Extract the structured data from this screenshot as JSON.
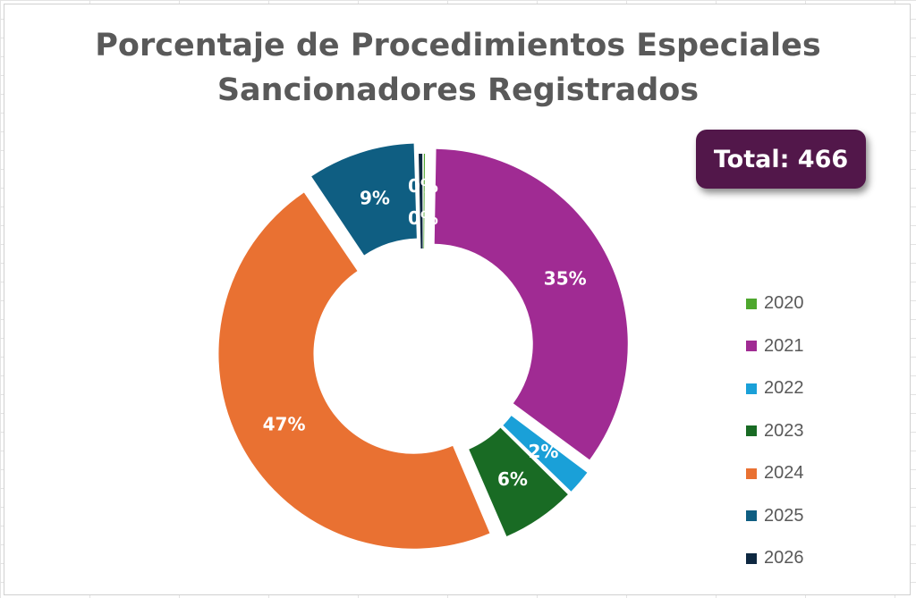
{
  "chart_data": {
    "type": "pie",
    "variant": "donut",
    "title_lines": [
      "Porcentaje de Procedimientos Especiales",
      "Sancionadores Registrados"
    ],
    "total_label": "Total: 466",
    "categories": [
      "2020",
      "2021",
      "2022",
      "2023",
      "2024",
      "2025",
      "2026"
    ],
    "values": [
      1,
      163,
      10,
      29,
      219,
      42,
      2
    ],
    "labels": [
      "0%",
      "35%",
      "2%",
      "6%",
      "47%",
      "9%",
      "0%"
    ],
    "colors": [
      "#4ea72e",
      "#a02b93",
      "#1aa0d8",
      "#196b24",
      "#e97132",
      "#0f5e82",
      "#0e2841"
    ],
    "exploded": [
      false,
      true,
      true,
      true,
      true,
      true,
      false
    ],
    "legend_position": "right"
  }
}
